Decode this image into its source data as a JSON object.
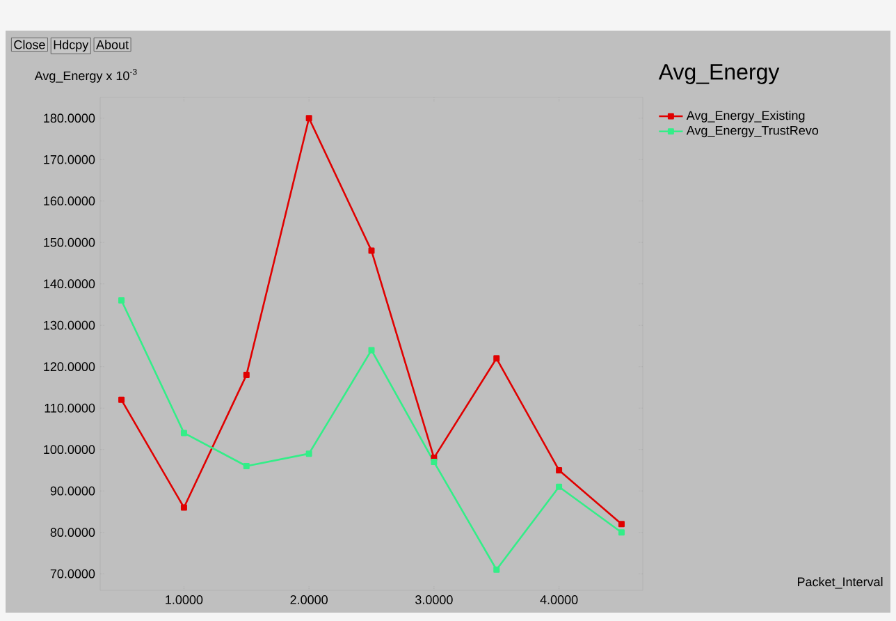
{
  "chart_data": {
    "type": "line",
    "title": "Avg_Energy",
    "ylabel": "Avg_Energy x 10$^{-3}$",
    "annotations": [
      "Close",
      "Hdcpy",
      "About",
      "Packet_Interval"
    ],
    "xlim": [
      0.33,
      4.67
    ],
    "ylim": [
      66,
      185
    ],
    "x": [
      0.5,
      1.0,
      1.5,
      2.0,
      2.5,
      3.0,
      3.5,
      4.0,
      4.5
    ],
    "series": [
      {
        "name": "Avg_Energy_Existing",
        "color": "#e00000",
        "values": [
          112,
          86,
          118,
          180,
          148,
          98,
          122,
          95,
          82
        ]
      },
      {
        "name": "Avg_Energy_TrustRevo",
        "color": "#33ee88",
        "values": [
          136,
          104,
          96,
          99,
          124,
          97,
          71,
          91,
          80
        ]
      }
    ],
    "xticks": [
      {
        "value": 1,
        "label": "1.0000"
      },
      {
        "value": 2,
        "label": "2.0000"
      },
      {
        "value": 3,
        "label": "3.0000"
      },
      {
        "value": 4,
        "label": "4.0000"
      }
    ],
    "yticks": [
      {
        "value": 70,
        "label": "70.0000"
      },
      {
        "value": 80,
        "label": "80.0000"
      },
      {
        "value": 90,
        "label": "90.0000"
      },
      {
        "value": 100,
        "label": "100.0000"
      },
      {
        "value": 110,
        "label": "110.0000"
      },
      {
        "value": 120,
        "label": "120.0000"
      },
      {
        "value": 130,
        "label": "130.0000"
      },
      {
        "value": 140,
        "label": "140.0000"
      },
      {
        "value": 150,
        "label": "150.0000"
      },
      {
        "value": 160,
        "label": "160.0000"
      },
      {
        "value": 170,
        "label": "170.0000"
      },
      {
        "value": 180,
        "label": "180.0000"
      }
    ],
    "legend": "right",
    "marker": "square",
    "line_style": "solid"
  }
}
